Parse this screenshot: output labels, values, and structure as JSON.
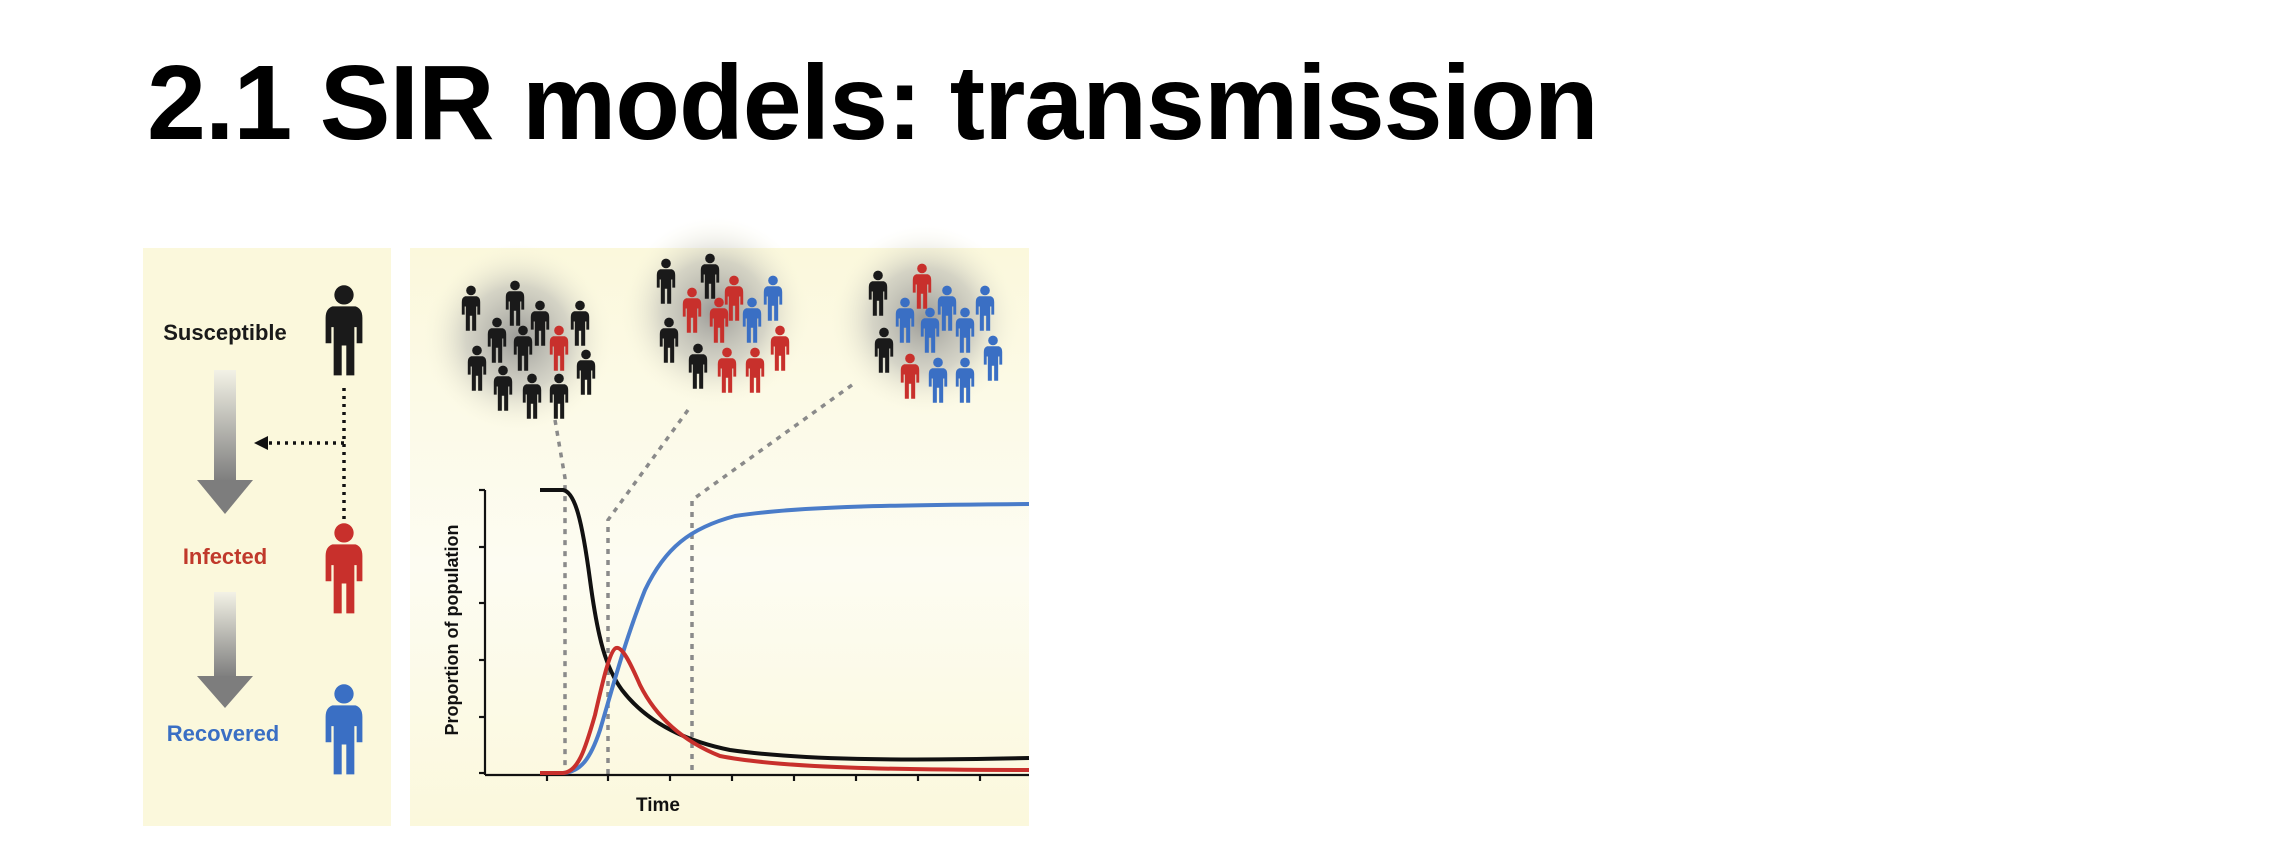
{
  "slide": {
    "title": "2.1 SIR models: transmission"
  },
  "legend_panel": {
    "states": [
      {
        "label": "Susceptible",
        "color": "#1a1a1a"
      },
      {
        "label": "Infected",
        "color": "#c0392b"
      },
      {
        "label": "Recovered",
        "color": "#3a6fc4"
      }
    ],
    "background": "#fbf8dc"
  },
  "chart_panel": {
    "xlabel": "Time",
    "ylabel": "Proportion of population",
    "background": "#fbf8dc",
    "colors": {
      "susceptible": "#111111",
      "infected": "#c8302c",
      "recovered": "#4a7cc9",
      "guide": "#8a8a8a"
    }
  }
}
